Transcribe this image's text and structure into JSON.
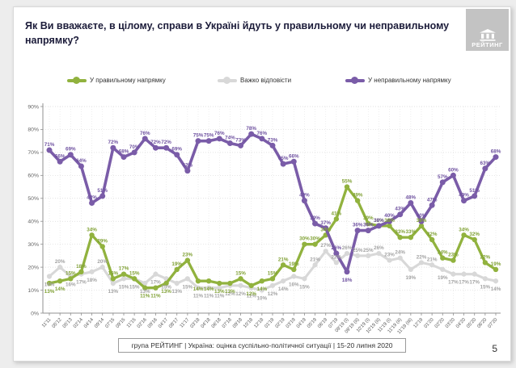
{
  "title": "Як Ви вважаєте, в цілому, справи в Україні йдуть у правильному чи неправильному напрямку?",
  "logo": {
    "text": "РЕЙТИНГ"
  },
  "footer": "група РЕЙТИНГ |  Україна: оцінка суспільно-політичної ситуації | 15-20 липня 2020",
  "page": {
    "number": "5"
  },
  "colors": {
    "green": "#91b23e",
    "gray": "#d8d8d8",
    "purple": "#7a5ca8",
    "green_label": "#80a135",
    "gray_label": "#a3a3a3",
    "purple_label": "#6f52a0"
  },
  "chart_data": {
    "type": "line",
    "title": "Як Ви вважаєте, в цілому, справи в Україні йдуть у правильному чи неправильному напрямку?",
    "xlabel": "",
    "ylabel": "",
    "ylim": [
      0,
      90
    ],
    "yticks": [
      "0%",
      "10%",
      "20%",
      "30%",
      "40%",
      "50%",
      "60%",
      "70%",
      "80%",
      "90%"
    ],
    "grid": true,
    "legend_position": "top",
    "categories": [
      "11'11",
      "05'12",
      "05'13",
      "02'14",
      "04'14",
      "09'14",
      "07'15",
      "09'15",
      "11'15",
      "02'16",
      "09'16",
      "04'17",
      "08'17",
      "11'17",
      "03'18",
      "04'18",
      "06'18",
      "07'18",
      "09'18",
      "10'18",
      "12'18",
      "01'19",
      "02'19",
      "03'19",
      "04'19",
      "05'19",
      "06'19",
      "07'19",
      "09'19 (I)",
      "09'19 (II)",
      "10'19 (I)",
      "10'19 (II)",
      "11'19 (I)",
      "11'19 (II)",
      "11'19 (III)",
      "12'19",
      "01'20",
      "02'20",
      "03'20",
      "04'20",
      "05'20",
      "06'20",
      "07'20"
    ],
    "series": [
      {
        "name": "У правильному напрямку",
        "color": "#91b23e",
        "values": [
          13,
          14,
          15,
          18,
          34,
          29,
          15,
          17,
          15,
          11,
          11,
          13,
          19,
          23,
          14,
          14,
          13,
          13,
          15,
          12,
          14,
          15,
          21,
          19,
          30,
          30,
          34,
          41,
          55,
          49,
          39,
          38,
          38,
          33,
          33,
          38,
          32,
          24,
          23,
          34,
          32,
          22,
          19
        ]
      },
      {
        "name": "Важко відповісти",
        "color": "#d8d8d8",
        "values": [
          16,
          20,
          16,
          17,
          18,
          20,
          13,
          15,
          15,
          13,
          17,
          15,
          13,
          15,
          11,
          11,
          11,
          12,
          12,
          11,
          10,
          12,
          14,
          16,
          15,
          21,
          27,
          22,
          26,
          25,
          25,
          26,
          23,
          24,
          19,
          22,
          21,
          19,
          17,
          17,
          17,
          15,
          14
        ]
      },
      {
        "name": "У неправильному напрямку",
        "color": "#7a5ca8",
        "values": [
          71,
          66,
          69,
          64,
          48,
          51,
          72,
          68,
          70,
          76,
          72,
          72,
          69,
          62,
          75,
          75,
          76,
          74,
          73,
          78,
          76,
          73,
          65,
          66,
          49,
          39,
          37,
          26,
          18,
          36,
          36,
          38,
          40,
          43,
          48,
          40,
          47,
          57,
          60,
          49,
          51,
          63,
          68
        ]
      }
    ]
  }
}
